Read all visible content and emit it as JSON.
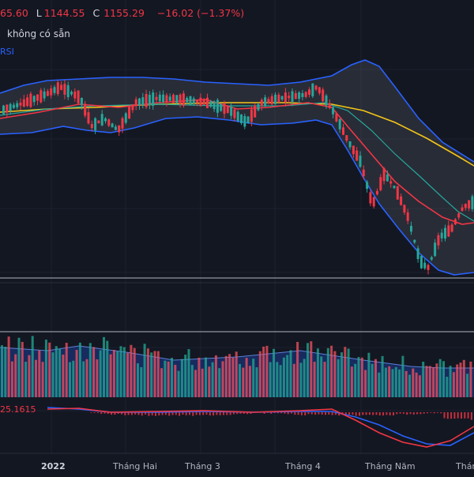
{
  "legend": {
    "open_value": "65.60",
    "low_label": "L",
    "low_value": "1144.55",
    "close_label": "C",
    "close_value": "1155.29",
    "change_value": "−16.02 (−1.37%)",
    "volume_text": "không có sẵn",
    "indicator_text": "RSI"
  },
  "macd": {
    "value_text": "25.1615"
  },
  "x_axis": {
    "labels": [
      "2022",
      "Tháng Hai",
      "Tháng 3",
      "Tháng 4",
      "Tháng Năm",
      "Tháng"
    ]
  },
  "colors": {
    "background": "#131722",
    "up": "#26a69a",
    "down": "#f23645",
    "band": "#2962ff",
    "ma_fast": "#f23645",
    "ma_mid": "#26a69a",
    "ma_slow": "#f5c518"
  },
  "chart_data": {
    "type": "candlestick",
    "x_axis_labels": [
      "2022",
      "Tháng Hai",
      "Tháng 3",
      "Tháng 4",
      "Tháng Năm",
      "Tháng"
    ],
    "last_close": 1155.29,
    "last_low": 1144.55,
    "last_change": -16.02,
    "last_change_pct": -1.37,
    "indicators": [
      "Bollinger Bands",
      "Moving Averages",
      "Volume",
      "MACD"
    ]
  }
}
